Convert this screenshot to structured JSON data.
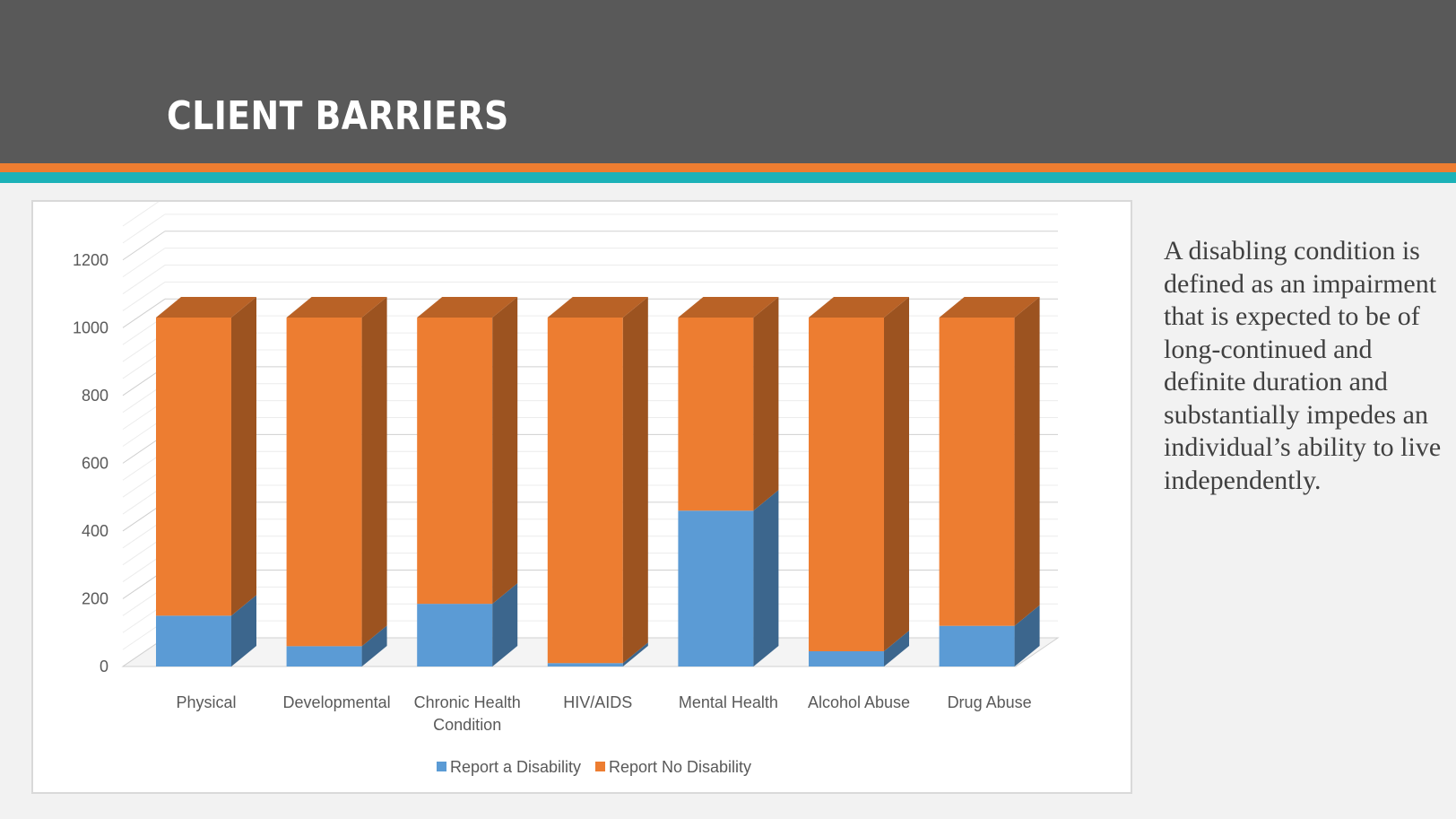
{
  "slide": {
    "title": "CLIENT BARRIERS",
    "description": "A disabling condition is defined as an impairment that is expected to be of long-continued and definite duration and substantially impedes an individual’s ability to live independently."
  },
  "colors": {
    "header": "#595959",
    "stripe_orange": "#ed7d31",
    "stripe_teal": "#1cb2b8",
    "series_disability": "#5b9bd5",
    "series_no_disability": "#ed7d31"
  },
  "chart_data": {
    "type": "bar",
    "stacked": true,
    "style": "3d",
    "categories": [
      "Physical",
      "Developmental",
      "Chronic Health Condition",
      "HIV/AIDS",
      "Mental Health",
      "Alcohol Abuse",
      "Drug Abuse"
    ],
    "category_lines": [
      [
        "Physical"
      ],
      [
        "Developmental"
      ],
      [
        "Chronic Health",
        "Condition"
      ],
      [
        "HIV/AIDS"
      ],
      [
        "Mental Health"
      ],
      [
        "Alcohol Abuse"
      ],
      [
        "Drug Abuse"
      ]
    ],
    "series": [
      {
        "name": "Report a Disability",
        "values": [
          150,
          60,
          185,
          10,
          460,
          45,
          120
        ]
      },
      {
        "name": "Report No Disability",
        "values": [
          880,
          970,
          845,
          1020,
          570,
          985,
          910
        ]
      }
    ],
    "yticks": [
      0,
      200,
      400,
      600,
      800,
      1000,
      1200
    ],
    "ylim": [
      0,
      1300
    ],
    "grid": true,
    "legend": "bottom"
  }
}
